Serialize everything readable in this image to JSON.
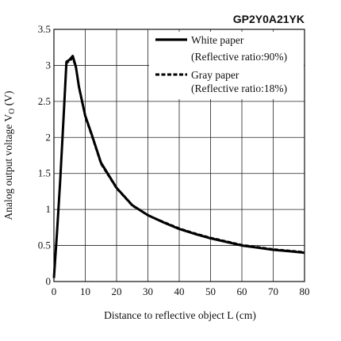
{
  "chart_data": {
    "type": "line",
    "title": "GP2Y0A21YK",
    "xlabel": "Distance to reflective object L (cm)",
    "ylabel": "Analog output voltage V",
    "ylabel_sub": "O",
    "ylabel_unit": " (V)",
    "xlim": [
      0,
      80
    ],
    "ylim": [
      0,
      3.5
    ],
    "xticks": [
      0,
      10,
      20,
      30,
      40,
      50,
      60,
      70,
      80
    ],
    "yticks": [
      0,
      0.5,
      1,
      1.5,
      2,
      2.5,
      3,
      3.5
    ],
    "xtick_labels": [
      "0",
      "10",
      "20",
      "30",
      "40",
      "50",
      "60",
      "70",
      "80"
    ],
    "ytick_labels": [
      "0",
      "0.5",
      "1",
      "1.5",
      "2",
      "2.5",
      "3",
      "3.5"
    ],
    "grid": true,
    "legend_position": "top-right",
    "series": [
      {
        "name": "White paper",
        "note": "(Reflective ratio:90%)",
        "style": "solid",
        "x": [
          0,
          1,
          2,
          3,
          4,
          5,
          6,
          7,
          8,
          10,
          12,
          15,
          20,
          25,
          30,
          35,
          40,
          45,
          50,
          55,
          60,
          65,
          70,
          75,
          80
        ],
        "y": [
          0.05,
          0.7,
          1.4,
          2.2,
          3.05,
          3.08,
          3.13,
          2.98,
          2.7,
          2.3,
          2.05,
          1.65,
          1.3,
          1.06,
          0.92,
          0.82,
          0.73,
          0.66,
          0.6,
          0.55,
          0.5,
          0.47,
          0.44,
          0.42,
          0.4
        ]
      },
      {
        "name": "Gray paper",
        "note": "(Reflective ratio:18%)",
        "style": "dashed",
        "x": [
          0,
          1,
          2,
          3,
          4,
          5,
          6,
          7,
          8,
          10,
          12,
          15,
          20,
          25,
          30,
          35,
          40,
          45,
          50,
          55,
          60,
          65,
          70,
          75,
          80
        ],
        "y": [
          0.05,
          0.7,
          1.4,
          2.2,
          3.03,
          3.06,
          3.1,
          2.96,
          2.68,
          2.28,
          2.03,
          1.63,
          1.29,
          1.05,
          0.92,
          0.83,
          0.74,
          0.67,
          0.61,
          0.56,
          0.51,
          0.48,
          0.45,
          0.43,
          0.41
        ]
      }
    ]
  }
}
